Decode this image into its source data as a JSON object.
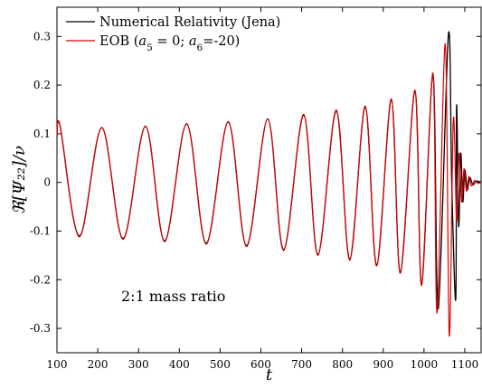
{
  "chart_data": {
    "type": "line",
    "xlabel": "t",
    "ylabel": "ℜ[Ψ₂₂]/ν",
    "xlim": [
      100,
      1140
    ],
    "ylim": [
      -0.35,
      0.36
    ],
    "x_ticks": [
      100,
      200,
      300,
      400,
      500,
      600,
      700,
      800,
      900,
      1000,
      1100
    ],
    "y_ticks": [
      0.3,
      0.2,
      0.1,
      0,
      -0.1,
      -0.2,
      -0.3
    ],
    "y_tick_labels": [
      "0.3",
      "0.2",
      "0.1",
      "0",
      "-0.1",
      "-0.2",
      "-0.3"
    ],
    "legend_position": "top-left",
    "annotation": "2:1 mass ratio",
    "series": [
      {
        "name": "Numerical Relativity (Jena)",
        "color": "#000000",
        "x": [
          100,
          108,
          155,
          210,
          262,
          317,
          364,
          418,
          466,
          520,
          565,
          617,
          656,
          705,
          740,
          785,
          818,
          856,
          884,
          920,
          942,
          978,
          994,
          1022,
          1035,
          1060,
          1068,
          1078,
          1080,
          1085,
          1090,
          1095,
          1100,
          1106,
          1112,
          1120,
          1128,
          1140
        ],
        "y": [
          0.095,
          0.115,
          -0.11,
          0.112,
          -0.115,
          0.115,
          -0.12,
          0.12,
          -0.125,
          0.124,
          -0.13,
          0.13,
          -0.138,
          0.138,
          -0.148,
          0.147,
          -0.158,
          0.155,
          -0.17,
          0.17,
          -0.185,
          0.188,
          -0.21,
          0.222,
          -0.26,
          0.305,
          0.0,
          -0.24,
          0.158,
          -0.09,
          0.06,
          -0.04,
          0.025,
          -0.015,
          0.01,
          -0.005,
          0.003,
          0.0
        ]
      },
      {
        "name": "EOB (a5 = 0; a6=-20)",
        "color": "#dd0000",
        "x": [
          100,
          108,
          155,
          210,
          262,
          317,
          364,
          418,
          466,
          520,
          565,
          617,
          656,
          705,
          740,
          785,
          818,
          856,
          884,
          920,
          942,
          978,
          994,
          1022,
          1032,
          1052,
          1062,
          1072,
          1080,
          1086,
          1092,
          1098,
          1104,
          1110,
          1116,
          1124,
          1132,
          1140
        ],
        "y": [
          0.097,
          0.115,
          -0.112,
          0.113,
          -0.117,
          0.116,
          -0.122,
          0.121,
          -0.127,
          0.125,
          -0.132,
          0.131,
          -0.14,
          0.14,
          -0.15,
          0.149,
          -0.16,
          0.157,
          -0.172,
          0.172,
          -0.187,
          0.19,
          -0.212,
          0.225,
          -0.268,
          0.285,
          -0.315,
          0.13,
          -0.08,
          0.06,
          -0.04,
          0.028,
          -0.018,
          0.012,
          -0.007,
          0.004,
          -0.002,
          0.0
        ]
      }
    ]
  }
}
